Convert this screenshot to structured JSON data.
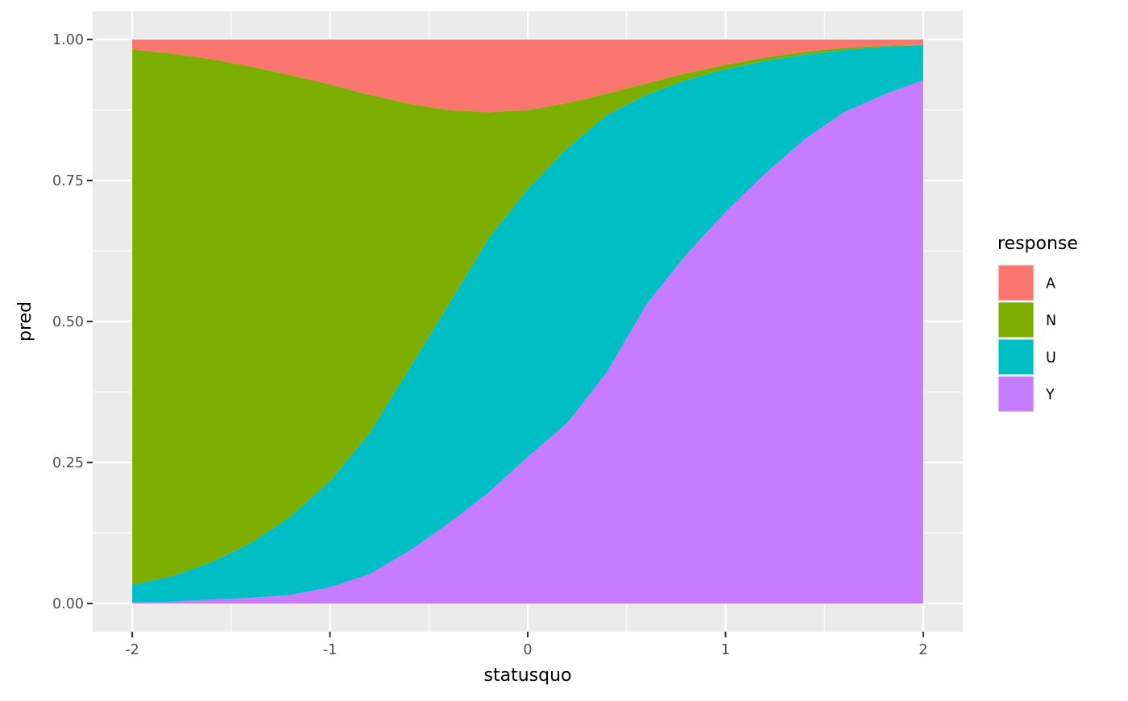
{
  "chart_data": {
    "type": "area",
    "stacked": true,
    "x": [
      -2.0,
      -1.8,
      -1.6,
      -1.4,
      -1.2,
      -1.0,
      -0.8,
      -0.6,
      -0.4,
      -0.2,
      0.0,
      0.2,
      0.4,
      0.6,
      0.8,
      1.0,
      1.2,
      1.4,
      1.6,
      1.8,
      2.0
    ],
    "xlabel": "statusquo",
    "ylabel": "pred",
    "xlim": [
      -2.2,
      2.2
    ],
    "ylim": [
      -0.05,
      1.05
    ],
    "x_ticks": [
      -2,
      -1,
      0,
      1,
      2
    ],
    "x_tick_labels": [
      "-2",
      "-1",
      "0",
      "1",
      "2"
    ],
    "y_ticks": [
      0,
      0.25,
      0.5,
      0.75,
      1.0
    ],
    "y_tick_labels": [
      "0.00",
      "0.25",
      "0.50",
      "0.75",
      "1.00"
    ],
    "grid": true,
    "legend": {
      "title": "response",
      "position": "right"
    },
    "series": [
      {
        "name": "A",
        "color": "#F8766D",
        "values": [
          0.018,
          0.025,
          0.035,
          0.048,
          0.063,
          0.08,
          0.098,
          0.114,
          0.125,
          0.129,
          0.125,
          0.113,
          0.096,
          0.078,
          0.06,
          0.045,
          0.032,
          0.022,
          0.015,
          0.011,
          0.01
        ]
      },
      {
        "name": "N",
        "color": "#7CAE00",
        "values": [
          0.949,
          0.927,
          0.892,
          0.845,
          0.783,
          0.703,
          0.6,
          0.47,
          0.345,
          0.225,
          0.14,
          0.08,
          0.038,
          0.02,
          0.012,
          0.008,
          0.006,
          0.005,
          0.004,
          0.002,
          0.0
        ]
      },
      {
        "name": "U",
        "color": "#00BFC4",
        "values": [
          0.031,
          0.045,
          0.066,
          0.097,
          0.139,
          0.188,
          0.25,
          0.323,
          0.388,
          0.45,
          0.475,
          0.487,
          0.456,
          0.372,
          0.31,
          0.253,
          0.2,
          0.15,
          0.11,
          0.085,
          0.062
        ]
      },
      {
        "name": "Y",
        "color": "#C77CFF",
        "values": [
          0.002,
          0.003,
          0.007,
          0.01,
          0.015,
          0.029,
          0.052,
          0.093,
          0.142,
          0.196,
          0.26,
          0.32,
          0.41,
          0.53,
          0.618,
          0.694,
          0.762,
          0.823,
          0.871,
          0.902,
          0.928
        ]
      }
    ]
  }
}
